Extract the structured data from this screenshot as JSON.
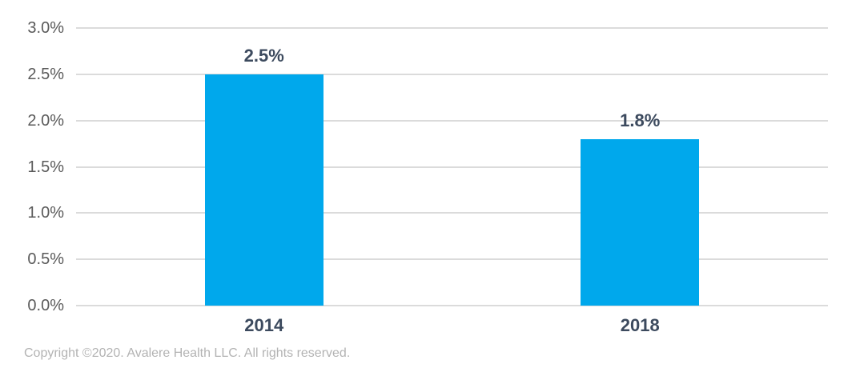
{
  "chart_data": {
    "type": "bar",
    "categories": [
      "2014",
      "2018"
    ],
    "values": [
      2.5,
      1.8
    ],
    "value_labels": [
      "2.5%",
      "1.8%"
    ],
    "title": "",
    "xlabel": "",
    "ylabel": "",
    "ylim": [
      0.0,
      3.0
    ],
    "yticks": [
      0.0,
      0.5,
      1.0,
      1.5,
      2.0,
      2.5,
      3.0
    ],
    "ytick_labels": [
      "0.0%",
      "0.5%",
      "1.0%",
      "1.5%",
      "2.0%",
      "2.5%",
      "3.0%"
    ],
    "grid": true,
    "legend": false,
    "colors": {
      "bar": "#00A8EC",
      "data_label": "#3C4A5E",
      "axis_tick": "#5A5A5A",
      "gridline": "#DBDBDB"
    }
  },
  "footer": {
    "copyright": "Copyright ©2020. Avalere Health LLC. All rights reserved."
  }
}
